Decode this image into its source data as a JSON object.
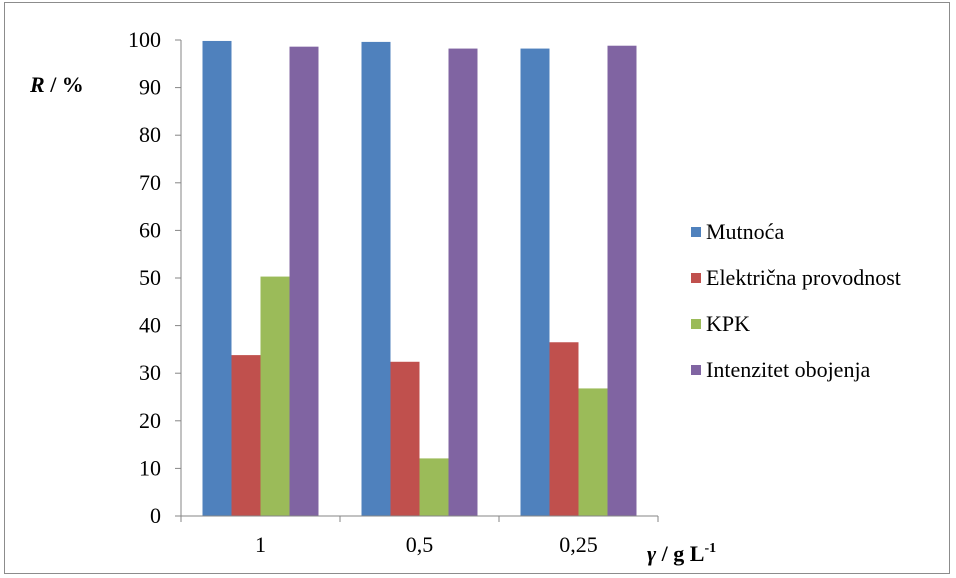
{
  "chart_data": {
    "type": "bar",
    "categories": [
      "1",
      "0,5",
      "0,25"
    ],
    "series": [
      {
        "name": "Mutnoća",
        "color": "#4f81bd",
        "values": [
          99.8,
          99.6,
          98.2
        ]
      },
      {
        "name": "Električna provodnost",
        "color": "#c0504d",
        "values": [
          33.8,
          32.4,
          36.5
        ]
      },
      {
        "name": "KPK",
        "color": "#9bbb59",
        "values": [
          50.3,
          12.1,
          26.8
        ]
      },
      {
        "name": "Intenzitet obojenja",
        "color": "#8064a2",
        "values": [
          98.6,
          98.2,
          98.8
        ]
      }
    ],
    "ylabel_var": "R",
    "ylabel_unit": " / %",
    "xlabel_var": "γ",
    "xlabel_unit": " / g L",
    "xlabel_exp": "-1",
    "ylim": [
      0,
      100
    ],
    "yticks": [
      "0",
      "10",
      "20",
      "30",
      "40",
      "50",
      "60",
      "70",
      "80",
      "90",
      "100"
    ],
    "legend_position": "right",
    "grid": false
  }
}
